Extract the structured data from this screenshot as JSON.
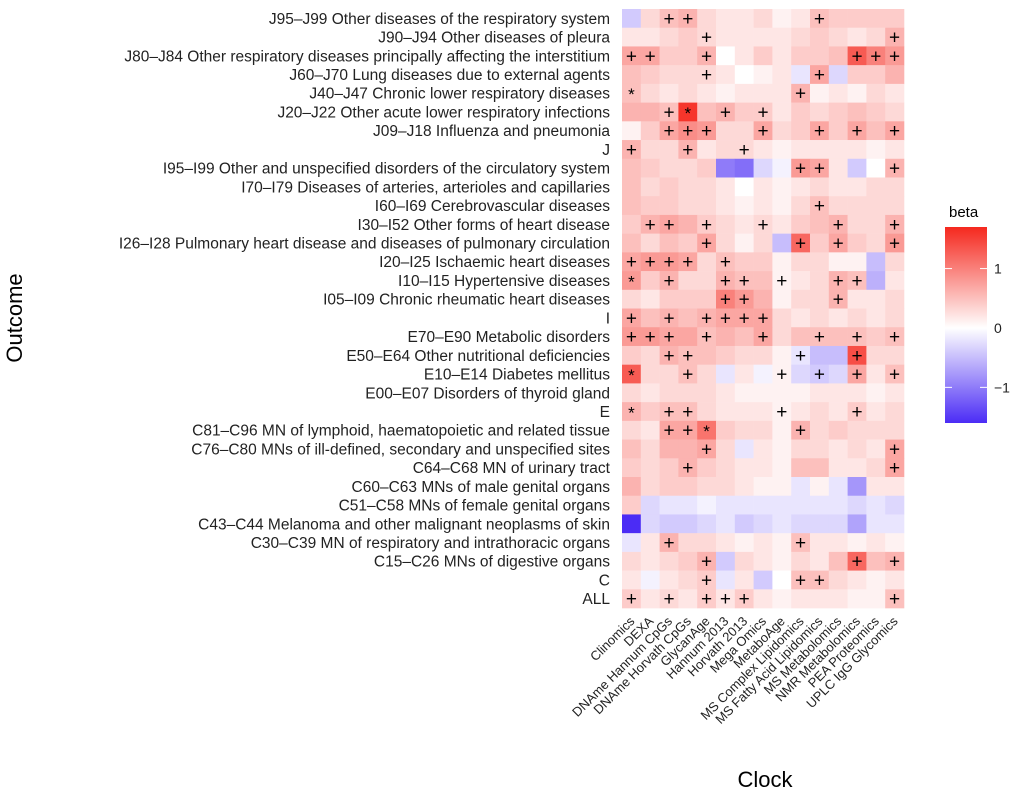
{
  "chart_data": {
    "type": "heatmap",
    "title": "",
    "xlabel": "Clock",
    "ylabel": "Outcome",
    "x_categories": [
      "Clinomics",
      "DEXA",
      "DNAme Hannum CpGs",
      "DNAme Horvath CpGs",
      "GlycanAge",
      "Hannum 2013",
      "Horvath 2013",
      "Mega Omics",
      "MetaboAge",
      "MS Complex Lipidomics",
      "MS Fatty Acid Lipidomics",
      "MS Metabolomics",
      "NMR Metabolomics",
      "PEA Proteomics",
      "UPLC IgG Glycomics"
    ],
    "y_categories": [
      "J95–J99 Other diseases of the respiratory system",
      "J90–J94 Other diseases of pleura",
      "J80–J84 Other respiratory diseases principally affecting the interstitium",
      "J60–J70 Lung diseases due to external agents",
      "J40–J47 Chronic lower respiratory diseases",
      "J20–J22 Other acute lower respiratory infections",
      "J09–J18 Influenza and pneumonia",
      "J",
      "I95–I99 Other and unspecified disorders of the circulatory system",
      "I70–I79 Diseases of arteries, arterioles and capillaries",
      "I60–I69 Cerebrovascular diseases",
      "I30–I52 Other forms of heart disease",
      "I26–I28 Pulmonary heart disease and diseases of pulmonary circulation",
      "I20–I25 Ischaemic heart diseases",
      "I10–I15 Hypertensive diseases",
      "I05–I09 Chronic rheumatic heart diseases",
      "I",
      "E70–E90 Metabolic disorders",
      "E50–E64 Other nutritional deficiencies",
      "E10–E14 Diabetes mellitus",
      "E00–E07 Disorders of thyroid gland",
      "E",
      "C81–C96 MN of lymphoid, haematopoietic and related tissue",
      "C76–C80 MNs of ill-defined, secondary and unspecified sites",
      "C64–C68 MN of urinary tract",
      "C60–C63 MNs of male genital organs",
      "C51–C58 MNs of female genital organs",
      "C43–C44 Melanoma and other malignant neoplasms of skin",
      "C30–C39 MN of respiratory and intrathoracic organs",
      "C15–C26 MNs of digestive organs",
      "C",
      "ALL"
    ],
    "values": [
      [
        -0.4,
        0.3,
        0.5,
        0.6,
        0.3,
        0.2,
        0.2,
        0.3,
        0.1,
        0.2,
        0.5,
        0.4,
        0.4,
        0.4,
        0.4
      ],
      [
        0.2,
        0.2,
        0.3,
        0.4,
        0.3,
        0.2,
        0.2,
        0.2,
        0.2,
        0.3,
        0.4,
        0.3,
        0.2,
        0.3,
        0.6
      ],
      [
        0.7,
        0.7,
        0.4,
        0.4,
        0.6,
        0.0,
        0.2,
        0.4,
        0.2,
        0.4,
        0.4,
        0.5,
        1.3,
        1.0,
        0.8
      ],
      [
        0.5,
        0.4,
        0.3,
        0.3,
        0.3,
        0.2,
        0.0,
        0.1,
        0.2,
        -0.2,
        0.7,
        -0.3,
        0.4,
        0.4,
        0.6
      ],
      [
        0.5,
        0.3,
        0.2,
        0.3,
        0.2,
        0.1,
        0.2,
        0.2,
        0.2,
        0.6,
        0.1,
        0.2,
        0.1,
        0.3,
        0.2
      ],
      [
        0.6,
        0.6,
        0.5,
        1.6,
        0.5,
        0.6,
        0.4,
        0.4,
        0.2,
        0.4,
        0.3,
        0.4,
        0.5,
        0.4,
        0.3
      ],
      [
        0.1,
        0.4,
        0.7,
        0.9,
        0.8,
        0.3,
        0.3,
        0.7,
        0.3,
        0.4,
        0.7,
        0.4,
        0.7,
        0.5,
        0.7
      ],
      [
        0.6,
        0.3,
        0.3,
        0.6,
        0.2,
        0.3,
        0.3,
        0.2,
        0.1,
        0.2,
        0.2,
        0.2,
        0.2,
        0.1,
        0.2
      ],
      [
        0.5,
        0.4,
        0.3,
        0.3,
        0.4,
        -1.0,
        -1.1,
        -0.3,
        -0.1,
        0.8,
        0.7,
        0.2,
        -0.4,
        0.0,
        0.6
      ],
      [
        0.5,
        0.3,
        0.4,
        0.3,
        0.3,
        0.2,
        0.0,
        0.2,
        0.1,
        0.2,
        0.3,
        0.2,
        0.2,
        0.3,
        0.3
      ],
      [
        0.5,
        0.4,
        0.4,
        0.3,
        0.3,
        0.2,
        0.1,
        0.2,
        0.1,
        0.3,
        0.5,
        0.3,
        0.3,
        0.3,
        0.3
      ],
      [
        0.4,
        0.6,
        0.7,
        0.6,
        0.4,
        0.3,
        0.2,
        0.3,
        0.2,
        0.4,
        0.5,
        0.6,
        0.3,
        0.3,
        0.6
      ],
      [
        0.5,
        0.3,
        0.5,
        0.4,
        0.7,
        0.3,
        0.1,
        0.3,
        -0.5,
        1.2,
        0.4,
        0.7,
        0.4,
        0.3,
        0.8
      ],
      [
        0.7,
        0.8,
        0.8,
        0.7,
        0.3,
        0.5,
        0.4,
        0.4,
        0.1,
        0.3,
        0.3,
        0.1,
        0.1,
        -0.5,
        0.3
      ],
      [
        0.8,
        0.4,
        0.6,
        0.3,
        0.3,
        0.6,
        0.5,
        0.5,
        0.1,
        0.2,
        0.3,
        0.6,
        0.5,
        -0.6,
        0.2
      ],
      [
        0.3,
        0.2,
        0.4,
        0.4,
        0.4,
        1.0,
        0.8,
        0.6,
        0.1,
        0.3,
        0.3,
        0.6,
        0.2,
        0.2,
        0.3
      ],
      [
        0.7,
        0.5,
        0.6,
        0.5,
        0.6,
        0.7,
        0.7,
        0.7,
        0.3,
        0.2,
        0.3,
        0.2,
        0.3,
        0.2,
        0.3
      ],
      [
        0.8,
        0.8,
        0.7,
        0.7,
        0.5,
        0.6,
        0.5,
        0.7,
        0.3,
        0.5,
        0.5,
        0.5,
        0.5,
        0.4,
        0.5
      ],
      [
        0.4,
        0.3,
        0.6,
        0.5,
        0.5,
        0.4,
        0.3,
        0.3,
        0.1,
        -0.2,
        -0.5,
        -0.5,
        1.4,
        0.3,
        0.3
      ],
      [
        1.3,
        0.3,
        0.3,
        0.5,
        0.3,
        -0.2,
        0.2,
        -0.1,
        0.1,
        -0.3,
        -0.4,
        -0.3,
        0.7,
        0.2,
        0.5
      ],
      [
        0.3,
        0.2,
        0.3,
        0.3,
        0.3,
        0.2,
        0.1,
        0.1,
        0.1,
        0.1,
        0.2,
        0.2,
        0.2,
        0.1,
        0.2
      ],
      [
        0.6,
        0.4,
        0.5,
        0.5,
        0.3,
        0.2,
        0.2,
        0.2,
        0.1,
        0.2,
        0.3,
        0.2,
        0.4,
        0.2,
        0.3
      ],
      [
        0.3,
        0.2,
        0.7,
        0.7,
        1.1,
        0.4,
        0.3,
        0.3,
        0.1,
        0.6,
        0.3,
        0.4,
        0.3,
        0.3,
        0.3
      ],
      [
        0.5,
        0.3,
        0.6,
        0.6,
        0.7,
        0.3,
        -0.2,
        0.2,
        0.1,
        0.3,
        0.3,
        0.2,
        0.3,
        0.2,
        0.7
      ],
      [
        0.4,
        0.3,
        0.4,
        0.6,
        0.4,
        0.3,
        0.2,
        0.2,
        0.1,
        0.5,
        0.5,
        0.2,
        0.2,
        0.3,
        0.7
      ],
      [
        0.6,
        0.3,
        0.4,
        0.4,
        0.3,
        0.3,
        0.2,
        0.1,
        0.1,
        -0.2,
        0.1,
        -0.2,
        -0.8,
        0.2,
        0.2
      ],
      [
        0.4,
        -0.3,
        -0.2,
        -0.2,
        -0.1,
        -0.2,
        -0.2,
        -0.2,
        -0.2,
        -0.2,
        -0.2,
        -0.2,
        -0.3,
        -0.2,
        -0.3
      ],
      [
        -1.6,
        -0.3,
        -0.4,
        -0.4,
        -0.3,
        -0.2,
        -0.4,
        -0.3,
        -0.2,
        -0.3,
        -0.3,
        -0.3,
        -0.7,
        -0.2,
        -0.2
      ],
      [
        -0.2,
        0.2,
        0.6,
        0.3,
        0.3,
        0.2,
        0.1,
        0.2,
        0.1,
        0.5,
        0.2,
        0.2,
        0.1,
        0.2,
        0.1
      ],
      [
        0.3,
        0.2,
        0.3,
        0.4,
        0.6,
        -0.4,
        0.3,
        0.2,
        0.1,
        0.3,
        0.2,
        0.5,
        1.2,
        0.5,
        0.6
      ],
      [
        0.2,
        -0.1,
        0.2,
        0.3,
        0.4,
        -0.2,
        0.2,
        -0.4,
        0.0,
        0.5,
        0.5,
        0.3,
        0.2,
        0.1,
        0.2
      ],
      [
        0.4,
        0.2,
        0.3,
        0.2,
        0.4,
        0.2,
        0.4,
        0.2,
        0.1,
        0.2,
        0.2,
        0.2,
        0.1,
        0.1,
        0.5
      ]
    ],
    "annotations": [
      {
        "row": 0,
        "col": 2,
        "mark": "+"
      },
      {
        "row": 0,
        "col": 3,
        "mark": "+"
      },
      {
        "row": 0,
        "col": 10,
        "mark": "+"
      },
      {
        "row": 1,
        "col": 4,
        "mark": "+"
      },
      {
        "row": 1,
        "col": 14,
        "mark": "+"
      },
      {
        "row": 2,
        "col": 0,
        "mark": "+"
      },
      {
        "row": 2,
        "col": 1,
        "mark": "+"
      },
      {
        "row": 2,
        "col": 4,
        "mark": "+"
      },
      {
        "row": 2,
        "col": 12,
        "mark": "+"
      },
      {
        "row": 2,
        "col": 13,
        "mark": "+"
      },
      {
        "row": 2,
        "col": 14,
        "mark": "+"
      },
      {
        "row": 3,
        "col": 4,
        "mark": "+"
      },
      {
        "row": 3,
        "col": 10,
        "mark": "+"
      },
      {
        "row": 4,
        "col": 0,
        "mark": "*"
      },
      {
        "row": 4,
        "col": 9,
        "mark": "+"
      },
      {
        "row": 5,
        "col": 2,
        "mark": "+"
      },
      {
        "row": 5,
        "col": 3,
        "mark": "*"
      },
      {
        "row": 5,
        "col": 5,
        "mark": "+"
      },
      {
        "row": 5,
        "col": 7,
        "mark": "+"
      },
      {
        "row": 6,
        "col": 2,
        "mark": "+"
      },
      {
        "row": 6,
        "col": 3,
        "mark": "+"
      },
      {
        "row": 6,
        "col": 4,
        "mark": "+"
      },
      {
        "row": 6,
        "col": 7,
        "mark": "+"
      },
      {
        "row": 6,
        "col": 10,
        "mark": "+"
      },
      {
        "row": 6,
        "col": 12,
        "mark": "+"
      },
      {
        "row": 6,
        "col": 14,
        "mark": "+"
      },
      {
        "row": 7,
        "col": 0,
        "mark": "+"
      },
      {
        "row": 7,
        "col": 3,
        "mark": "+"
      },
      {
        "row": 7,
        "col": 6,
        "mark": "+"
      },
      {
        "row": 8,
        "col": 9,
        "mark": "+"
      },
      {
        "row": 8,
        "col": 10,
        "mark": "+"
      },
      {
        "row": 8,
        "col": 14,
        "mark": "+"
      },
      {
        "row": 10,
        "col": 10,
        "mark": "+"
      },
      {
        "row": 11,
        "col": 1,
        "mark": "+"
      },
      {
        "row": 11,
        "col": 2,
        "mark": "+"
      },
      {
        "row": 11,
        "col": 4,
        "mark": "+"
      },
      {
        "row": 11,
        "col": 7,
        "mark": "+"
      },
      {
        "row": 11,
        "col": 11,
        "mark": "+"
      },
      {
        "row": 11,
        "col": 14,
        "mark": "+"
      },
      {
        "row": 12,
        "col": 4,
        "mark": "+"
      },
      {
        "row": 12,
        "col": 9,
        "mark": "+"
      },
      {
        "row": 12,
        "col": 11,
        "mark": "+"
      },
      {
        "row": 12,
        "col": 14,
        "mark": "+"
      },
      {
        "row": 13,
        "col": 0,
        "mark": "+"
      },
      {
        "row": 13,
        "col": 1,
        "mark": "+"
      },
      {
        "row": 13,
        "col": 2,
        "mark": "+"
      },
      {
        "row": 13,
        "col": 3,
        "mark": "+"
      },
      {
        "row": 13,
        "col": 5,
        "mark": "+"
      },
      {
        "row": 14,
        "col": 0,
        "mark": "*"
      },
      {
        "row": 14,
        "col": 2,
        "mark": "+"
      },
      {
        "row": 14,
        "col": 5,
        "mark": "+"
      },
      {
        "row": 14,
        "col": 6,
        "mark": "+"
      },
      {
        "row": 14,
        "col": 8,
        "mark": "+"
      },
      {
        "row": 14,
        "col": 11,
        "mark": "+"
      },
      {
        "row": 14,
        "col": 12,
        "mark": "+"
      },
      {
        "row": 15,
        "col": 5,
        "mark": "+"
      },
      {
        "row": 15,
        "col": 6,
        "mark": "+"
      },
      {
        "row": 15,
        "col": 11,
        "mark": "+"
      },
      {
        "row": 16,
        "col": 0,
        "mark": "+"
      },
      {
        "row": 16,
        "col": 2,
        "mark": "+"
      },
      {
        "row": 16,
        "col": 4,
        "mark": "+"
      },
      {
        "row": 16,
        "col": 5,
        "mark": "+"
      },
      {
        "row": 16,
        "col": 6,
        "mark": "+"
      },
      {
        "row": 16,
        "col": 7,
        "mark": "+"
      },
      {
        "row": 17,
        "col": 0,
        "mark": "+"
      },
      {
        "row": 17,
        "col": 1,
        "mark": "+"
      },
      {
        "row": 17,
        "col": 2,
        "mark": "+"
      },
      {
        "row": 17,
        "col": 4,
        "mark": "+"
      },
      {
        "row": 17,
        "col": 7,
        "mark": "+"
      },
      {
        "row": 17,
        "col": 10,
        "mark": "+"
      },
      {
        "row": 17,
        "col": 12,
        "mark": "+"
      },
      {
        "row": 17,
        "col": 14,
        "mark": "+"
      },
      {
        "row": 18,
        "col": 2,
        "mark": "+"
      },
      {
        "row": 18,
        "col": 3,
        "mark": "+"
      },
      {
        "row": 18,
        "col": 9,
        "mark": "+"
      },
      {
        "row": 18,
        "col": 12,
        "mark": "+"
      },
      {
        "row": 19,
        "col": 0,
        "mark": "*"
      },
      {
        "row": 19,
        "col": 3,
        "mark": "+"
      },
      {
        "row": 19,
        "col": 8,
        "mark": "+"
      },
      {
        "row": 19,
        "col": 10,
        "mark": "+"
      },
      {
        "row": 19,
        "col": 12,
        "mark": "+"
      },
      {
        "row": 19,
        "col": 14,
        "mark": "+"
      },
      {
        "row": 21,
        "col": 0,
        "mark": "*"
      },
      {
        "row": 21,
        "col": 2,
        "mark": "+"
      },
      {
        "row": 21,
        "col": 3,
        "mark": "+"
      },
      {
        "row": 21,
        "col": 8,
        "mark": "+"
      },
      {
        "row": 21,
        "col": 12,
        "mark": "+"
      },
      {
        "row": 22,
        "col": 2,
        "mark": "+"
      },
      {
        "row": 22,
        "col": 3,
        "mark": "+"
      },
      {
        "row": 22,
        "col": 4,
        "mark": "*"
      },
      {
        "row": 22,
        "col": 9,
        "mark": "+"
      },
      {
        "row": 23,
        "col": 4,
        "mark": "+"
      },
      {
        "row": 23,
        "col": 14,
        "mark": "+"
      },
      {
        "row": 24,
        "col": 3,
        "mark": "+"
      },
      {
        "row": 24,
        "col": 14,
        "mark": "+"
      },
      {
        "row": 28,
        "col": 2,
        "mark": "+"
      },
      {
        "row": 28,
        "col": 9,
        "mark": "+"
      },
      {
        "row": 29,
        "col": 4,
        "mark": "+"
      },
      {
        "row": 29,
        "col": 12,
        "mark": "+"
      },
      {
        "row": 29,
        "col": 14,
        "mark": "+"
      },
      {
        "row": 30,
        "col": 4,
        "mark": "+"
      },
      {
        "row": 30,
        "col": 9,
        "mark": "+"
      },
      {
        "row": 30,
        "col": 10,
        "mark": "+"
      },
      {
        "row": 31,
        "col": 0,
        "mark": "+"
      },
      {
        "row": 31,
        "col": 2,
        "mark": "+"
      },
      {
        "row": 31,
        "col": 4,
        "mark": "+"
      },
      {
        "row": 31,
        "col": 5,
        "mark": "+"
      },
      {
        "row": 31,
        "col": 6,
        "mark": "+"
      },
      {
        "row": 31,
        "col": 14,
        "mark": "+"
      }
    ],
    "legend": {
      "title": "beta",
      "placement": "right",
      "ticks": [
        1,
        0,
        -1
      ],
      "tick_labels": [
        "1",
        "0",
        "−1"
      ],
      "range": [
        -1.6,
        1.7
      ]
    },
    "colors": {
      "low": "#4b2cf5",
      "mid": "#ffffff",
      "high": "#f5281e"
    }
  }
}
